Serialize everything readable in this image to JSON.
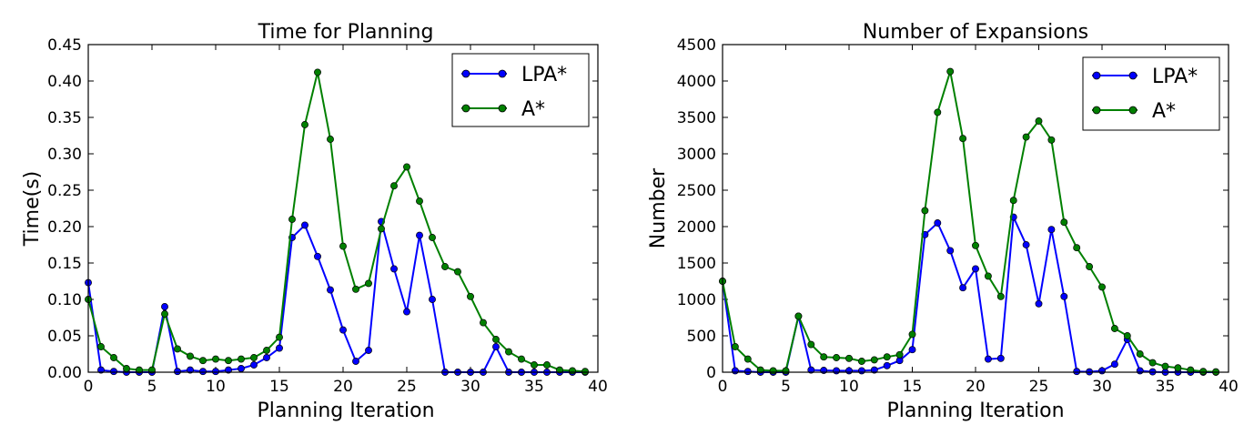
{
  "chart_data": [
    {
      "type": "line",
      "title": "Time for Planning",
      "xlabel": "Planning Iteration",
      "ylabel": "Time(s)",
      "xlim": [
        0,
        40
      ],
      "ylim": [
        0,
        0.45
      ],
      "xticks": [
        0,
        5,
        10,
        15,
        20,
        25,
        30,
        35,
        40
      ],
      "yticks": [
        0.0,
        0.05,
        0.1,
        0.15,
        0.2,
        0.25,
        0.3,
        0.35,
        0.4,
        0.45
      ],
      "xtick_labels": [
        "0",
        "5",
        "10",
        "15",
        "20",
        "25",
        "30",
        "35",
        "40"
      ],
      "ytick_labels": [
        "0.00",
        "0.05",
        "0.10",
        "0.15",
        "0.20",
        "0.25",
        "0.30",
        "0.35",
        "0.40",
        "0.45"
      ],
      "grid": false,
      "legend_position": "top-right",
      "x": [
        0,
        1,
        2,
        3,
        4,
        5,
        6,
        7,
        8,
        9,
        10,
        11,
        12,
        13,
        14,
        15,
        16,
        17,
        18,
        19,
        20,
        21,
        22,
        23,
        24,
        25,
        26,
        27,
        28,
        29,
        30,
        31,
        32,
        33,
        34,
        35,
        36,
        37,
        38,
        39
      ],
      "series": [
        {
          "name": "LPA*",
          "color": "#0000ff",
          "values": [
            0.123,
            0.003,
            0.001,
            0.0,
            0.0,
            0.0,
            0.09,
            0.001,
            0.003,
            0.001,
            0.001,
            0.003,
            0.005,
            0.01,
            0.02,
            0.033,
            0.185,
            0.202,
            0.159,
            0.113,
            0.058,
            0.015,
            0.03,
            0.207,
            0.142,
            0.083,
            0.188,
            0.1,
            0.0,
            0.0,
            0.0,
            0.0,
            0.035,
            0.0,
            0.0,
            0.0,
            0.0,
            0.0,
            0.0,
            0.0
          ]
        },
        {
          "name": "A*",
          "color": "#008000",
          "values": [
            0.1,
            0.035,
            0.02,
            0.005,
            0.003,
            0.003,
            0.08,
            0.032,
            0.022,
            0.016,
            0.018,
            0.016,
            0.018,
            0.02,
            0.03,
            0.048,
            0.21,
            0.34,
            0.412,
            0.32,
            0.173,
            0.114,
            0.122,
            0.197,
            0.256,
            0.282,
            0.235,
            0.185,
            0.145,
            0.138,
            0.104,
            0.068,
            0.045,
            0.028,
            0.018,
            0.01,
            0.01,
            0.003,
            0.002,
            0.001
          ]
        }
      ]
    },
    {
      "type": "line",
      "title": "Number of Expansions",
      "xlabel": "Planning Iteration",
      "ylabel": "Number",
      "xlim": [
        0,
        40
      ],
      "ylim": [
        0,
        4500
      ],
      "xticks": [
        0,
        5,
        10,
        15,
        20,
        25,
        30,
        35,
        40
      ],
      "yticks": [
        0,
        500,
        1000,
        1500,
        2000,
        2500,
        3000,
        3500,
        4000,
        4500
      ],
      "xtick_labels": [
        "0",
        "5",
        "10",
        "15",
        "20",
        "25",
        "30",
        "35",
        "40"
      ],
      "ytick_labels": [
        "0",
        "500",
        "1000",
        "1500",
        "2000",
        "2500",
        "3000",
        "3500",
        "4000",
        "4500"
      ],
      "grid": false,
      "legend_position": "top-right",
      "x": [
        0,
        1,
        2,
        3,
        4,
        5,
        6,
        7,
        8,
        9,
        10,
        11,
        12,
        13,
        14,
        15,
        16,
        17,
        18,
        19,
        20,
        21,
        22,
        23,
        24,
        25,
        26,
        27,
        28,
        29,
        30,
        31,
        32,
        33,
        34,
        35,
        36,
        37,
        38,
        39
      ],
      "series": [
        {
          "name": "LPA*",
          "color": "#0000ff",
          "values": [
            1250,
            20,
            10,
            0,
            0,
            0,
            770,
            30,
            25,
            20,
            20,
            20,
            30,
            90,
            160,
            310,
            1890,
            2050,
            1670,
            1160,
            1420,
            180,
            190,
            2130,
            1750,
            940,
            1960,
            1040,
            10,
            5,
            20,
            110,
            450,
            20,
            5,
            0,
            0,
            0,
            0,
            0
          ]
        },
        {
          "name": "A*",
          "color": "#008000",
          "values": [
            1250,
            350,
            180,
            30,
            20,
            20,
            770,
            380,
            210,
            200,
            190,
            150,
            170,
            210,
            240,
            520,
            2220,
            3570,
            4130,
            3210,
            1740,
            1320,
            1040,
            2360,
            3230,
            3450,
            3190,
            2060,
            1710,
            1450,
            1170,
            600,
            500,
            250,
            130,
            80,
            60,
            30,
            10,
            5
          ]
        }
      ]
    }
  ]
}
